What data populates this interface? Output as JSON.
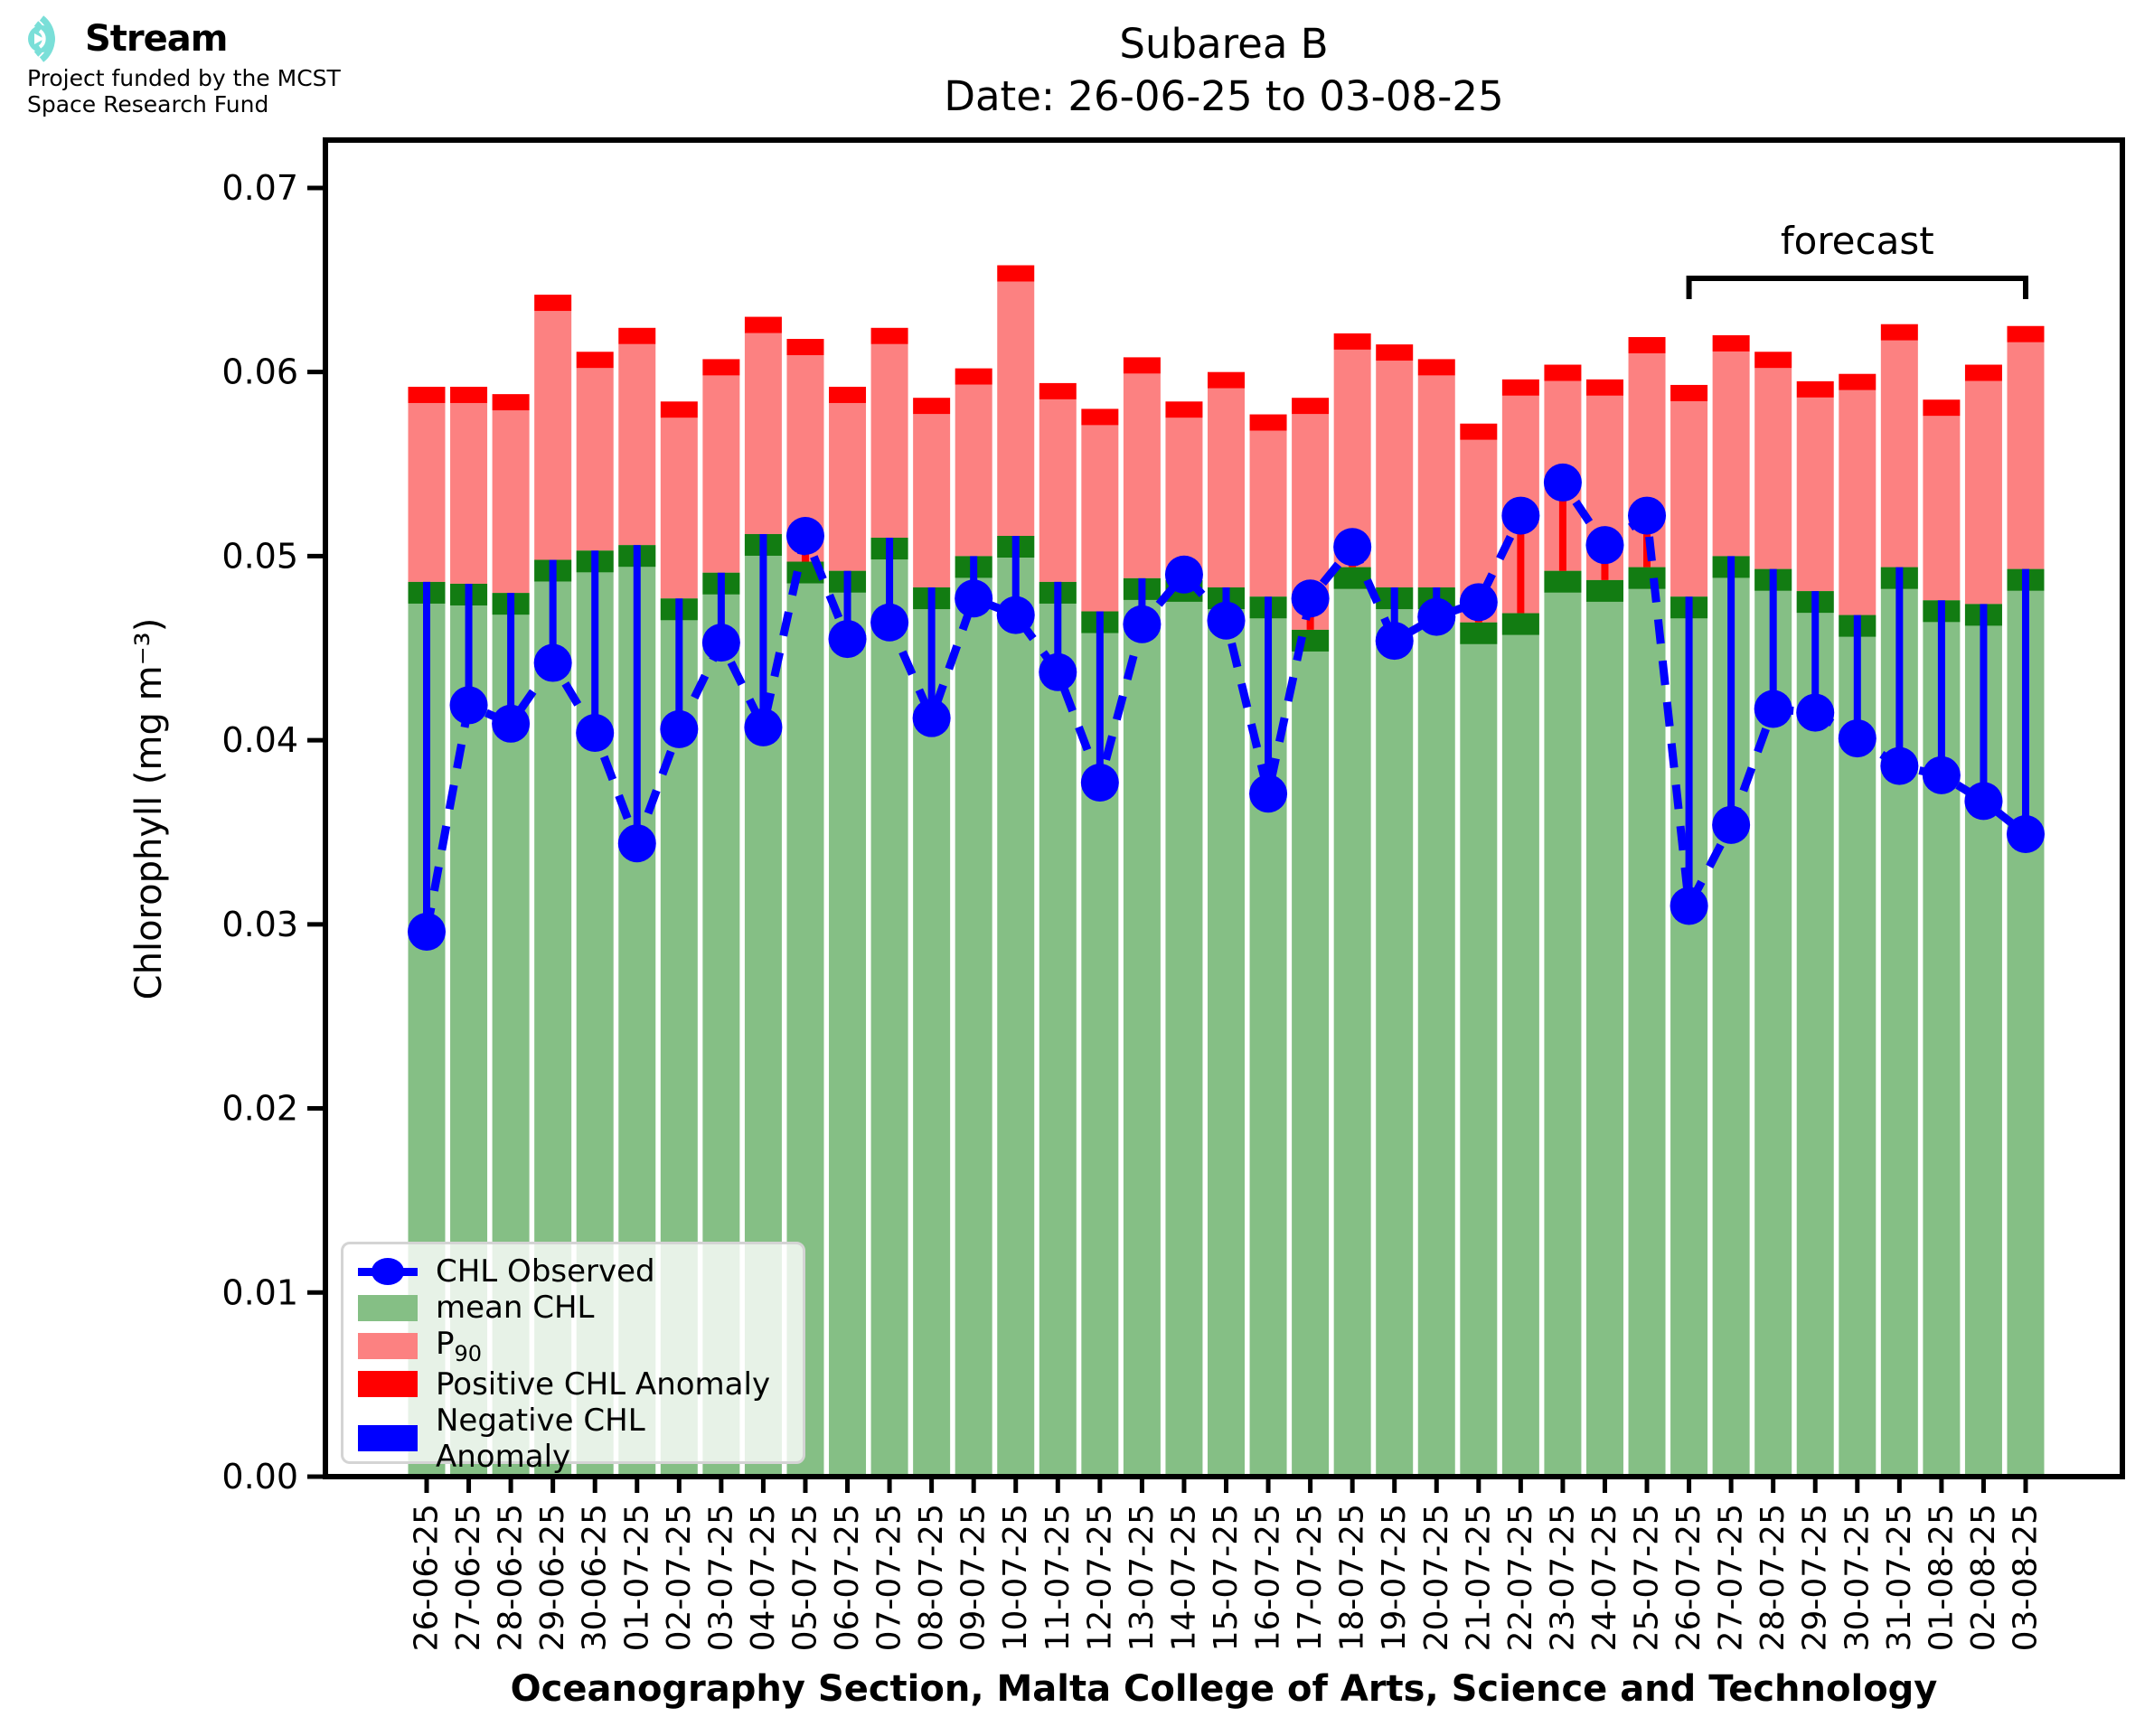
{
  "logo": {
    "brand": "Stream",
    "subtitle_line1": "Project funded by the MCST",
    "subtitle_line2": "Space Research Fund",
    "teal": "#7adfd8"
  },
  "title": {
    "line1": "Subarea B",
    "line2": "Date: 26-06-25 to 03-08-25"
  },
  "legend": {
    "items": [
      {
        "label": "CHL Observed",
        "type": "marker",
        "color": "#0000ff"
      },
      {
        "label": "mean CHL",
        "type": "patch",
        "color": "#85bf85"
      },
      {
        "label": "P",
        "sub": "90",
        "type": "patch",
        "color": "#fc8181"
      },
      {
        "label": "Positive CHL Anomaly",
        "type": "patch",
        "color": "#ff0000"
      },
      {
        "label": "Negative CHL Anomaly",
        "type": "patch",
        "color": "#0000ff"
      }
    ]
  },
  "chart_data": {
    "type": "bar+line",
    "title": "Subarea B",
    "subtitle": "Date: 26-06-25 to 03-08-25",
    "xlabel": "Oceanography Section, Malta College of Arts, Science and Technology",
    "ylabel": "Chlorophyll (mg m⁻³)",
    "ylim": [
      0,
      0.0726
    ],
    "ytick_labels": [
      "0.00",
      "0.01",
      "0.02",
      "0.03",
      "0.04",
      "0.05",
      "0.06",
      "0.07"
    ],
    "ytick_values": [
      0,
      0.01,
      0.02,
      0.03,
      0.04,
      0.05,
      0.06,
      0.07
    ],
    "grid": false,
    "legend_position": "lower left",
    "categories": [
      "26-06-25",
      "27-06-25",
      "28-06-25",
      "29-06-25",
      "30-06-25",
      "01-07-25",
      "02-07-25",
      "03-07-25",
      "04-07-25",
      "05-07-25",
      "06-07-25",
      "07-07-25",
      "08-07-25",
      "09-07-25",
      "10-07-25",
      "11-07-25",
      "12-07-25",
      "13-07-25",
      "14-07-25",
      "15-07-25",
      "16-07-25",
      "17-07-25",
      "18-07-25",
      "19-07-25",
      "20-07-25",
      "21-07-25",
      "22-07-25",
      "23-07-25",
      "24-07-25",
      "25-07-25",
      "26-07-25",
      "27-07-25",
      "28-07-25",
      "29-07-25",
      "30-07-25",
      "31-07-25",
      "01-08-25",
      "02-08-25",
      "03-08-25"
    ],
    "series": [
      {
        "name": "mean CHL",
        "type": "bar",
        "color": "#85bf85",
        "cap_color": "#127c12",
        "values": [
          0.0486,
          0.0485,
          0.048,
          0.0498,
          0.0503,
          0.0506,
          0.0477,
          0.0491,
          0.0512,
          0.0497,
          0.0492,
          0.051,
          0.0483,
          0.05,
          0.0511,
          0.0486,
          0.047,
          0.0488,
          0.0487,
          0.0483,
          0.0478,
          0.046,
          0.0494,
          0.0483,
          0.0483,
          0.0464,
          0.0469,
          0.0492,
          0.0487,
          0.0494,
          0.0478,
          0.05,
          0.0493,
          0.0481,
          0.0468,
          0.0494,
          0.0476,
          0.0474,
          0.0493
        ]
      },
      {
        "name": "P90",
        "type": "bar",
        "color": "#fc8181",
        "cap_color": "#ff0000",
        "values": [
          0.0592,
          0.0592,
          0.0588,
          0.0642,
          0.0611,
          0.0624,
          0.0584,
          0.0607,
          0.063,
          0.0618,
          0.0592,
          0.0624,
          0.0586,
          0.0602,
          0.0658,
          0.0594,
          0.058,
          0.0608,
          0.0584,
          0.06,
          0.0577,
          0.0586,
          0.0621,
          0.0615,
          0.0607,
          0.0572,
          0.0596,
          0.0604,
          0.0596,
          0.0619,
          0.0593,
          0.062,
          0.0611,
          0.0595,
          0.0599,
          0.0626,
          0.0585,
          0.0604,
          0.0625
        ]
      },
      {
        "name": "CHL Observed",
        "type": "line",
        "color": "#0000ff",
        "values": [
          0.0296,
          0.0419,
          0.0409,
          0.0442,
          0.0404,
          0.0344,
          0.0406,
          0.0453,
          0.0407,
          0.0511,
          0.0455,
          0.0464,
          0.0412,
          0.0477,
          0.0468,
          0.0437,
          0.0377,
          0.0463,
          0.049,
          0.0465,
          0.0371,
          0.0477,
          0.0505,
          0.0454,
          0.0467,
          0.0475,
          0.0522,
          0.054,
          0.0506,
          0.0522,
          0.031,
          0.0354,
          0.0417,
          0.0415,
          0.0401,
          0.0386,
          0.0381,
          0.0367,
          0.0349
        ]
      }
    ],
    "anomaly": {
      "positive_color": "#ff0000",
      "negative_color": "#0000ff"
    },
    "forecast": {
      "label": "forecast",
      "start": "26-07-25",
      "end": "03-08-25"
    }
  }
}
